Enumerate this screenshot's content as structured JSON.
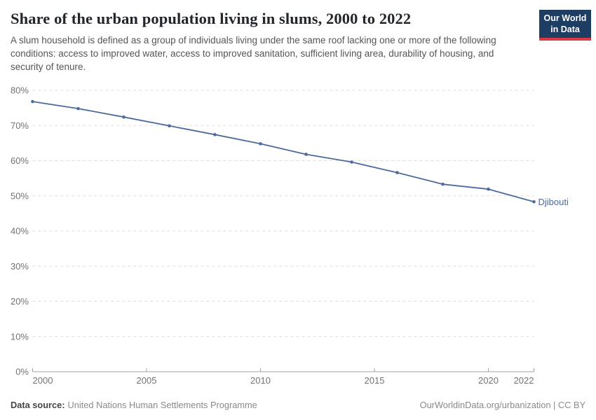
{
  "header": {
    "title": "Share of the urban population living in slums, 2000 to 2022",
    "subtitle": "A slum household is defined as a group of individuals living under the same roof lacking one or more of the following conditions: access to improved water, access to improved sanitation, sufficient living area, durability of housing, and security of tenure.",
    "logo": {
      "line1": "Our World",
      "line2": "in Data"
    }
  },
  "chart_data": {
    "type": "line",
    "title": "Share of the urban population living in slums, 2000 to 2022",
    "x": [
      2000,
      2002,
      2004,
      2006,
      2008,
      2010,
      2012,
      2014,
      2016,
      2018,
      2020,
      2022
    ],
    "series": [
      {
        "name": "Djibouti",
        "color": "#4c6a9c",
        "values": [
          76.8,
          74.8,
          72.4,
          69.9,
          67.4,
          64.8,
          61.8,
          59.6,
          56.6,
          53.3,
          51.9,
          48.3
        ]
      }
    ],
    "xlabel": "",
    "ylabel": "",
    "ylim": [
      0,
      80
    ],
    "y_ticks": [
      0,
      10,
      20,
      30,
      40,
      50,
      60,
      70,
      80
    ],
    "y_tick_suffix": "%",
    "x_ticks": [
      2000,
      2005,
      2010,
      2015,
      2020,
      2022
    ],
    "grid": "horizontal-dashed",
    "legend_position": "end-of-line-label",
    "colors": {
      "line": "#4c6a9c",
      "gridline": "#dedede",
      "axis": "#a1a1a1",
      "tick_label": "#737373",
      "logo_bg": "#1d3d63",
      "logo_stripe": "#d93a46"
    }
  },
  "footer": {
    "datasource_label": "Data source:",
    "datasource_value": "United Nations Human Settlements Programme",
    "attribution": "OurWorldinData.org/urbanization | CC BY"
  }
}
